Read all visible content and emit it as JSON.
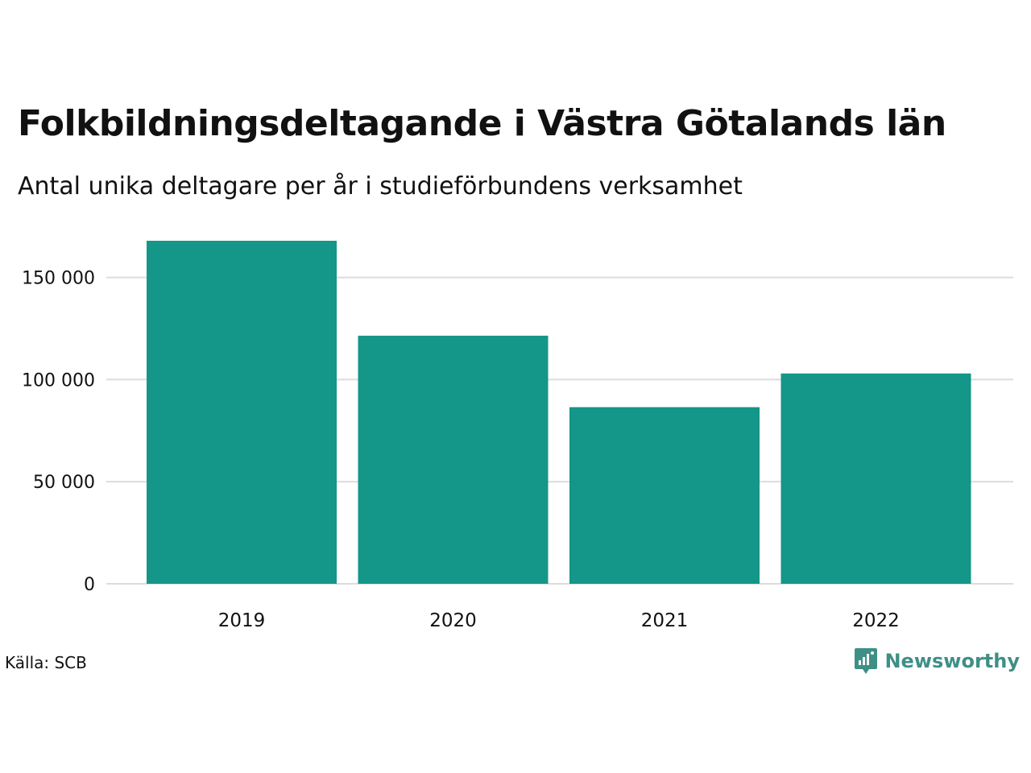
{
  "header": {
    "title": "Folkbildningsdeltagande i Västra Götalands län",
    "subtitle": "Antal unika deltagare per år i studieförbundens verksamhet"
  },
  "footer": {
    "source": "Källa: SCB",
    "brand": "Newsworthy",
    "brand_icon": "newsworthy-logo-icon"
  },
  "colors": {
    "bar": "#149688",
    "grid": "#dcdcdc",
    "brand": "#3e8f86",
    "text": "#111111"
  },
  "chart_data": {
    "type": "bar",
    "categories": [
      "2019",
      "2020",
      "2021",
      "2022"
    ],
    "values": [
      168000,
      121500,
      86500,
      103000
    ],
    "ylim": [
      0,
      168000
    ],
    "yticks": [
      0,
      50000,
      100000,
      150000
    ],
    "ytick_labels": [
      "0",
      "50 000",
      "100 000",
      "150 000"
    ],
    "grid": "horizontal",
    "legend": "none"
  }
}
